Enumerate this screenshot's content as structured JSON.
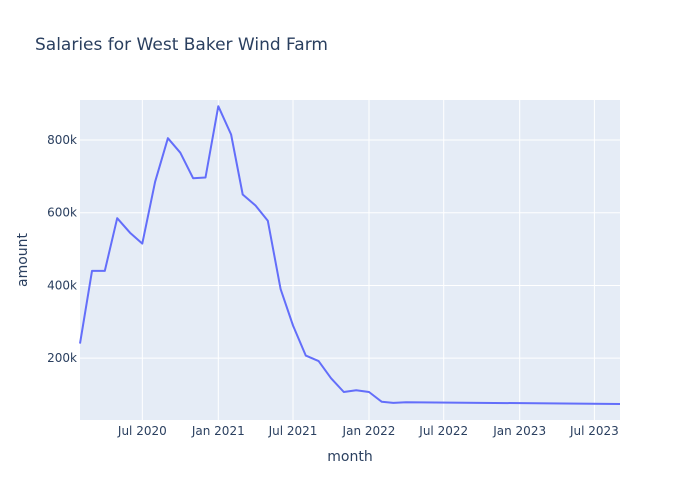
{
  "chart_data": {
    "type": "line",
    "title": "Salaries for West Baker Wind Farm",
    "xlabel": "month",
    "ylabel": "amount",
    "x": [
      "2020-02-01",
      "2020-03-01",
      "2020-04-01",
      "2020-05-01",
      "2020-06-01",
      "2020-07-01",
      "2020-08-01",
      "2020-09-01",
      "2020-10-01",
      "2020-11-01",
      "2020-12-01",
      "2021-01-01",
      "2021-02-01",
      "2021-03-01",
      "2021-04-01",
      "2021-05-01",
      "2021-06-01",
      "2021-07-01",
      "2021-08-01",
      "2021-09-01",
      "2021-10-01",
      "2021-11-01",
      "2021-12-01",
      "2022-01-01",
      "2022-02-01",
      "2022-03-01",
      "2022-04-01",
      "2023-09-01"
    ],
    "values": [
      240000,
      440000,
      440000,
      585000,
      545000,
      515000,
      685000,
      805000,
      765000,
      695000,
      697000,
      893000,
      815000,
      650000,
      620000,
      578000,
      390000,
      290000,
      207000,
      192000,
      145000,
      107000,
      112000,
      107000,
      80000,
      77000,
      79000,
      74000
    ],
    "xlim": [
      "2020-02-01",
      "2023-09-01"
    ],
    "ylim": [
      30000,
      910000
    ],
    "xticks": [
      {
        "date": "2020-07-01",
        "label": "Jul 2020"
      },
      {
        "date": "2021-01-01",
        "label": "Jan 2021"
      },
      {
        "date": "2021-07-01",
        "label": "Jul 2021"
      },
      {
        "date": "2022-01-01",
        "label": "Jan 2022"
      },
      {
        "date": "2022-07-01",
        "label": "Jul 2022"
      },
      {
        "date": "2023-01-01",
        "label": "Jan 2023"
      },
      {
        "date": "2023-07-01",
        "label": "Jul 2023"
      }
    ],
    "yticks": [
      {
        "value": 200000,
        "label": "200k"
      },
      {
        "value": 400000,
        "label": "400k"
      },
      {
        "value": 600000,
        "label": "600k"
      },
      {
        "value": 800000,
        "label": "800k"
      }
    ],
    "grid": true,
    "colors": {
      "plot_bg": "#e5ecf6",
      "grid": "#ffffff",
      "line": "#636efa",
      "text": "#2a3f5f"
    }
  }
}
